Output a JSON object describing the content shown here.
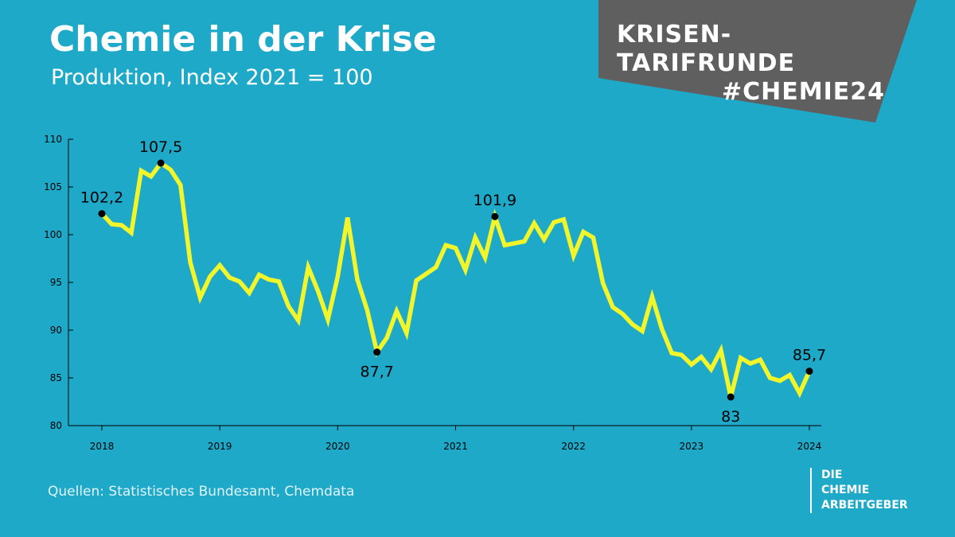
{
  "header": {
    "title": "Chemie in der Krise",
    "subtitle": "Produktion, Index 2021 = 100"
  },
  "banner": {
    "line1": "KRISEN-TARIFRUNDE",
    "line2": "#CHEMIE24"
  },
  "footer": {
    "source": "Quellen: Statistisches Bundesamt, Chemdata",
    "logo_lines": [
      "DIE",
      "CHEMIE",
      "ARBEITGEBER"
    ]
  },
  "colors": {
    "background": "#1fa9c9",
    "line": "#f2f52a",
    "axis": "#000000",
    "banner": "#5f5f5f"
  },
  "chart_data": {
    "type": "line",
    "title": "Chemie in der Krise",
    "subtitle": "Produktion, Index 2021 = 100",
    "xlabel": "",
    "ylabel": "",
    "ylim": [
      80,
      110
    ],
    "yticks": [
      80,
      85,
      90,
      95,
      100,
      105,
      110
    ],
    "xlim": [
      2018,
      2024
    ],
    "xticks": [
      2018,
      2019,
      2020,
      2021,
      2022,
      2023,
      2024
    ],
    "grid": false,
    "series": [
      {
        "x": [
          2018.0,
          2018.0833,
          2018.1667,
          2018.25,
          2018.3333,
          2018.4167,
          2018.5,
          2018.5833,
          2018.6667,
          2018.75,
          2018.8333,
          2018.9167,
          2019.0,
          2019.0833,
          2019.1667,
          2019.25,
          2019.3333,
          2019.4167,
          2019.5,
          2019.5833,
          2019.6667,
          2019.75,
          2019.8333,
          2019.9167,
          2020.0,
          2020.0833,
          2020.1667,
          2020.25,
          2020.3333,
          2020.4167,
          2020.5,
          2020.5833,
          2020.6667,
          2020.75,
          2020.8333,
          2020.9167,
          2021.0,
          2021.0833,
          2021.1667,
          2021.25,
          2021.3333,
          2021.4167,
          2021.5,
          2021.5833,
          2021.6667,
          2021.75,
          2021.8333,
          2021.9167,
          2022.0,
          2022.0833,
          2022.1667,
          2022.25,
          2022.3333,
          2022.4167,
          2022.5,
          2022.5833,
          2022.6667,
          2022.75,
          2022.8333,
          2022.9167,
          2023.0,
          2023.0833,
          2023.1667,
          2023.25,
          2023.3333,
          2023.4167,
          2023.5,
          2023.5833,
          2023.6667,
          2023.75,
          2023.8333,
          2023.9167,
          2024.0
        ],
        "values": [
          102.2,
          101.1,
          101.0,
          100.2,
          106.7,
          106.1,
          107.5,
          106.8,
          105.2,
          97.1,
          93.4,
          95.6,
          96.8,
          95.5,
          95.1,
          93.9,
          95.8,
          95.3,
          95.1,
          92.5,
          91.0,
          96.6,
          94.1,
          91.1,
          95.6,
          101.8,
          95.3,
          92.1,
          87.7,
          89.2,
          92.0,
          89.7,
          95.2,
          95.9,
          96.6,
          98.9,
          98.6,
          96.3,
          99.7,
          97.6,
          101.9,
          98.9,
          99.1,
          99.3,
          101.2,
          99.5,
          101.3,
          101.6,
          97.8,
          100.3,
          99.7,
          94.9,
          92.4,
          91.7,
          90.6,
          89.9,
          93.5,
          90.1,
          87.6,
          87.4,
          86.4,
          87.2,
          85.9,
          87.9,
          83.0,
          87.1,
          86.5,
          86.9,
          85.0,
          84.7,
          85.3,
          83.4,
          85.7
        ]
      }
    ],
    "annotations": [
      {
        "label": "102,2",
        "x": 2018.0,
        "y": 102.2,
        "position": "above"
      },
      {
        "label": "107,5",
        "x": 2018.5,
        "y": 107.5,
        "position": "above"
      },
      {
        "label": "87,7",
        "x": 2020.3333,
        "y": 87.7,
        "position": "below"
      },
      {
        "label": "101,9",
        "x": 2021.3333,
        "y": 101.9,
        "position": "above"
      },
      {
        "label": "83",
        "x": 2023.3333,
        "y": 83.0,
        "position": "below"
      },
      {
        "label": "85,7",
        "x": 2024.0,
        "y": 85.7,
        "position": "above"
      }
    ]
  }
}
